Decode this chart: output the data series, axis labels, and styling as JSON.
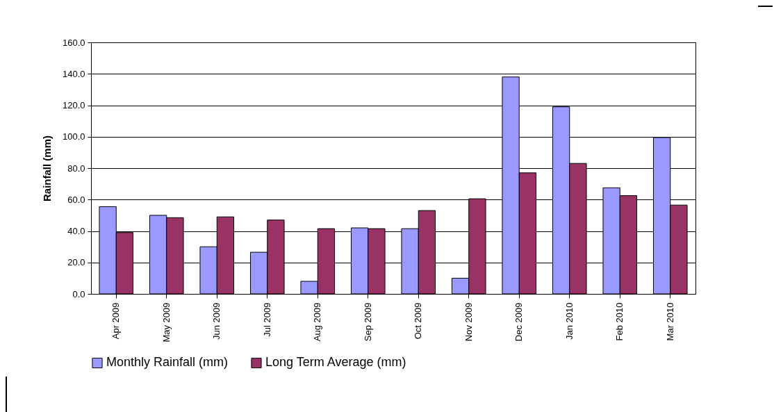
{
  "chart_data": {
    "type": "bar",
    "ylabel": "Rainfall (mm)",
    "categories": [
      "Apr 2009",
      "May 2009",
      "Jun 2009",
      "Jul 2009",
      "Aug 2009",
      "Sep 2009",
      "Oct 2009",
      "Nov 2009",
      "Dec 2009",
      "Jan 2010",
      "Feb 2010",
      "Mar 2010"
    ],
    "series": [
      {
        "name": "Monthly Rainfall (mm)",
        "color": "#9999ff",
        "values": [
          55.5,
          50,
          30,
          26.5,
          8,
          42,
          41.5,
          10,
          138,
          119,
          67.5,
          99.5
        ]
      },
      {
        "name": "Long Term Average (mm)",
        "color": "#993366",
        "values": [
          39,
          48.5,
          49,
          47,
          41.5,
          41.5,
          53,
          60.5,
          77,
          83,
          62.5,
          56.5
        ]
      }
    ],
    "ylim": [
      0,
      160
    ],
    "yticks": [
      {
        "value": 0,
        "label": "0.0"
      },
      {
        "value": 20,
        "label": "20.0"
      },
      {
        "value": 40,
        "label": "40.0"
      },
      {
        "value": 60,
        "label": "60.0"
      },
      {
        "value": 80,
        "label": "80.0"
      },
      {
        "value": 100,
        "label": "100.0"
      },
      {
        "value": 120,
        "label": "120.0"
      },
      {
        "value": 140,
        "label": "140.0"
      },
      {
        "value": 160,
        "label": "160.0"
      }
    ],
    "grid": "y",
    "legend": "bottom"
  }
}
